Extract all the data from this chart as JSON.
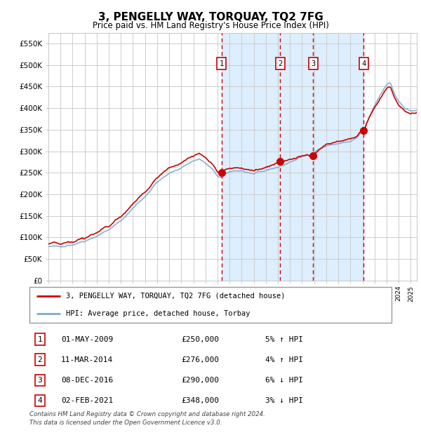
{
  "title": "3, PENGELLY WAY, TORQUAY, TQ2 7FG",
  "subtitle": "Price paid vs. HM Land Registry's House Price Index (HPI)",
  "legend_line1": "3, PENGELLY WAY, TORQUAY, TQ2 7FG (detached house)",
  "legend_line2": "HPI: Average price, detached house, Torbay",
  "footnote1": "Contains HM Land Registry data © Crown copyright and database right 2024.",
  "footnote2": "This data is licensed under the Open Government Licence v3.0.",
  "sales": [
    {
      "num": 1,
      "date_label": "01-MAY-2009",
      "price_label": "£250,000",
      "hpi_label": "5% ↑ HPI",
      "year": 2009.33,
      "price": 250000
    },
    {
      "num": 2,
      "date_label": "11-MAR-2014",
      "price_label": "£276,000",
      "hpi_label": "4% ↑ HPI",
      "year": 2014.19,
      "price": 276000
    },
    {
      "num": 3,
      "date_label": "08-DEC-2016",
      "price_label": "£290,000",
      "hpi_label": "6% ↓ HPI",
      "year": 2016.93,
      "price": 290000
    },
    {
      "num": 4,
      "date_label": "02-FEB-2021",
      "price_label": "£348,000",
      "hpi_label": "3% ↓ HPI",
      "year": 2021.09,
      "price": 348000
    }
  ],
  "ylim": [
    0,
    575000
  ],
  "xlim_start": 1995.0,
  "xlim_end": 2025.5,
  "red_line_color": "#cc0000",
  "blue_line_color": "#7aadcc",
  "shade_color": "#ddeeff",
  "grid_color": "#cccccc",
  "background_color": "#ffffff",
  "hpi_anchors": [
    [
      1995.0,
      78000
    ],
    [
      1996.0,
      80000
    ],
    [
      1997.0,
      83000
    ],
    [
      1998.0,
      92000
    ],
    [
      1999.0,
      103000
    ],
    [
      2000.0,
      118000
    ],
    [
      2001.0,
      138000
    ],
    [
      2002.0,
      168000
    ],
    [
      2003.0,
      195000
    ],
    [
      2004.0,
      228000
    ],
    [
      2004.5,
      238000
    ],
    [
      2005.0,
      248000
    ],
    [
      2005.5,
      255000
    ],
    [
      2006.0,
      262000
    ],
    [
      2007.0,
      278000
    ],
    [
      2007.5,
      282000
    ],
    [
      2008.0,
      272000
    ],
    [
      2008.5,
      260000
    ],
    [
      2009.0,
      242000
    ],
    [
      2009.33,
      240000
    ],
    [
      2009.8,
      248000
    ],
    [
      2010.0,
      252000
    ],
    [
      2010.5,
      255000
    ],
    [
      2011.0,
      255000
    ],
    [
      2011.5,
      250000
    ],
    [
      2012.0,
      247000
    ],
    [
      2012.5,
      250000
    ],
    [
      2013.0,
      255000
    ],
    [
      2013.5,
      260000
    ],
    [
      2014.0,
      263000
    ],
    [
      2014.19,
      265000
    ],
    [
      2014.5,
      268000
    ],
    [
      2015.0,
      275000
    ],
    [
      2015.5,
      280000
    ],
    [
      2016.0,
      287000
    ],
    [
      2016.5,
      292000
    ],
    [
      2016.93,
      295000
    ],
    [
      2017.0,
      298000
    ],
    [
      2017.5,
      306000
    ],
    [
      2018.0,
      312000
    ],
    [
      2018.5,
      315000
    ],
    [
      2019.0,
      318000
    ],
    [
      2019.5,
      320000
    ],
    [
      2020.0,
      322000
    ],
    [
      2020.5,
      330000
    ],
    [
      2021.0,
      345000
    ],
    [
      2021.09,
      348000
    ],
    [
      2021.5,
      375000
    ],
    [
      2022.0,
      405000
    ],
    [
      2022.5,
      432000
    ],
    [
      2023.0,
      455000
    ],
    [
      2023.3,
      460000
    ],
    [
      2023.7,
      432000
    ],
    [
      2024.0,
      415000
    ],
    [
      2024.5,
      400000
    ],
    [
      2025.0,
      392000
    ],
    [
      2025.5,
      395000
    ]
  ],
  "red_offsets": [
    [
      1995.0,
      6000
    ],
    [
      2000.0,
      9000
    ],
    [
      2004.0,
      12000
    ],
    [
      2007.0,
      13000
    ],
    [
      2008.5,
      12000
    ],
    [
      2009.33,
      10000
    ],
    [
      2011.0,
      6000
    ],
    [
      2013.0,
      8000
    ],
    [
      2014.19,
      11000
    ],
    [
      2016.0,
      2000
    ],
    [
      2016.93,
      -5000
    ],
    [
      2018.0,
      3000
    ],
    [
      2020.0,
      5000
    ],
    [
      2021.09,
      0
    ],
    [
      2022.0,
      -5000
    ],
    [
      2023.0,
      -10000
    ],
    [
      2024.0,
      -8000
    ],
    [
      2025.5,
      -5000
    ]
  ]
}
